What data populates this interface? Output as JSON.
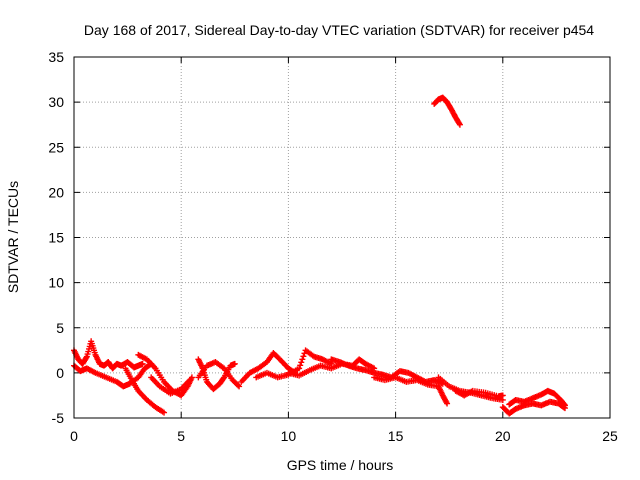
{
  "chart_data": {
    "type": "scatter",
    "title": "Day 168 of 2017, Sidereal Day-to-day VTEC variation (SDTVAR) for receiver p454",
    "xlabel": "GPS time / hours",
    "ylabel": "SDTVAR / TECUs",
    "xlim": [
      0,
      25
    ],
    "ylim": [
      -5,
      35
    ],
    "xticks": [
      "0",
      "5",
      "10",
      "15",
      "20",
      "25"
    ],
    "yticks": [
      "-5",
      "0",
      "5",
      "10",
      "15",
      "20",
      "25",
      "30",
      "35"
    ],
    "grid": true,
    "marker": "plus",
    "color": "#ff0000",
    "series": [
      {
        "name": "SDTVAR",
        "segments": [
          [
            [
              0.0,
              2.5
            ],
            [
              0.2,
              1.5
            ],
            [
              0.4,
              1.0
            ],
            [
              0.6,
              1.8
            ],
            [
              0.8,
              3.5
            ],
            [
              1.0,
              2.0
            ],
            [
              1.2,
              1.0
            ],
            [
              1.4,
              0.8
            ],
            [
              1.6,
              1.2
            ],
            [
              1.8,
              0.5
            ],
            [
              2.0,
              1.0
            ],
            [
              2.2,
              0.8
            ],
            [
              2.5,
              1.2
            ],
            [
              2.8,
              0.6
            ],
            [
              3.0,
              0.8
            ],
            [
              3.2,
              1.0
            ]
          ],
          [
            [
              0.0,
              0.8
            ],
            [
              0.3,
              0.2
            ],
            [
              0.6,
              0.5
            ],
            [
              1.0,
              0.0
            ],
            [
              1.5,
              -0.5
            ],
            [
              2.0,
              -1.0
            ],
            [
              2.3,
              -1.5
            ],
            [
              2.6,
              -1.2
            ],
            [
              3.0,
              -0.5
            ],
            [
              3.3,
              0.5
            ],
            [
              3.6,
              1.0
            ]
          ],
          [
            [
              2.4,
              0.5
            ],
            [
              2.7,
              -0.8
            ],
            [
              3.0,
              -2.0
            ],
            [
              3.4,
              -3.0
            ],
            [
              3.8,
              -3.8
            ],
            [
              4.2,
              -4.4
            ]
          ],
          [
            [
              3.0,
              2.0
            ],
            [
              3.4,
              1.5
            ],
            [
              3.8,
              0.5
            ],
            [
              4.2,
              -1.0
            ],
            [
              4.6,
              -2.0
            ],
            [
              5.0,
              -2.5
            ],
            [
              5.3,
              -1.5
            ],
            [
              5.5,
              -0.5
            ]
          ],
          [
            [
              3.6,
              -0.5
            ],
            [
              4.0,
              -1.5
            ],
            [
              4.5,
              -2.3
            ],
            [
              5.0,
              -1.8
            ],
            [
              5.4,
              -0.8
            ]
          ],
          [
            [
              5.8,
              1.5
            ],
            [
              6.0,
              0.5
            ],
            [
              6.2,
              -1.0
            ],
            [
              6.5,
              -1.8
            ],
            [
              6.8,
              -1.2
            ],
            [
              7.0,
              -0.5
            ],
            [
              7.3,
              0.8
            ],
            [
              7.5,
              1.0
            ]
          ],
          [
            [
              5.8,
              -0.5
            ],
            [
              6.2,
              0.8
            ],
            [
              6.6,
              1.2
            ],
            [
              7.0,
              0.5
            ],
            [
              7.4,
              -0.8
            ],
            [
              7.7,
              -1.5
            ]
          ],
          [
            [
              7.8,
              -1.0
            ],
            [
              8.2,
              0.0
            ],
            [
              8.6,
              0.5
            ],
            [
              9.0,
              1.2
            ],
            [
              9.3,
              2.2
            ],
            [
              9.6,
              1.5
            ],
            [
              10.0,
              0.5
            ],
            [
              10.3,
              0.0
            ]
          ],
          [
            [
              8.5,
              -0.5
            ],
            [
              9.0,
              0.0
            ],
            [
              9.5,
              -0.5
            ],
            [
              10.0,
              -0.2
            ],
            [
              10.5,
              0.5
            ],
            [
              10.8,
              2.5
            ],
            [
              11.2,
              1.8
            ],
            [
              11.6,
              1.5
            ],
            [
              12.0,
              1.0
            ]
          ],
          [
            [
              10.0,
              0.0
            ],
            [
              10.5,
              -0.3
            ],
            [
              11.0,
              0.3
            ],
            [
              11.5,
              0.8
            ],
            [
              12.0,
              0.5
            ],
            [
              12.5,
              1.0
            ],
            [
              13.0,
              0.8
            ],
            [
              13.3,
              1.5
            ],
            [
              13.6,
              1.0
            ],
            [
              14.0,
              0.5
            ]
          ],
          [
            [
              12.0,
              1.5
            ],
            [
              12.4,
              1.2
            ],
            [
              12.8,
              0.8
            ],
            [
              13.2,
              0.5
            ],
            [
              13.6,
              0.3
            ],
            [
              14.0,
              0.0
            ],
            [
              14.4,
              -0.2
            ],
            [
              14.8,
              -0.5
            ],
            [
              15.2,
              0.2
            ],
            [
              15.6,
              0.0
            ],
            [
              16.0,
              -0.5
            ],
            [
              16.4,
              -1.0
            ],
            [
              16.8,
              -0.8
            ],
            [
              17.2,
              -1.2
            ]
          ],
          [
            [
              14.0,
              -0.5
            ],
            [
              14.5,
              -0.8
            ],
            [
              15.0,
              -0.5
            ],
            [
              15.5,
              -1.0
            ],
            [
              16.0,
              -0.8
            ],
            [
              16.5,
              -1.3
            ],
            [
              17.0,
              -1.5
            ]
          ],
          [
            [
              17.0,
              -0.5
            ],
            [
              17.5,
              -1.5
            ],
            [
              18.0,
              -2.0
            ],
            [
              18.5,
              -2.2
            ],
            [
              19.0,
              -2.5
            ],
            [
              19.5,
              -2.8
            ],
            [
              20.0,
              -3.0
            ]
          ],
          [
            [
              17.0,
              -1.5
            ],
            [
              17.2,
              -2.5
            ],
            [
              17.4,
              -3.4
            ]
          ],
          [
            [
              17.8,
              -2.0
            ],
            [
              18.2,
              -2.5
            ],
            [
              18.6,
              -2.0
            ],
            [
              19.2,
              -2.2
            ],
            [
              19.8,
              -2.6
            ],
            [
              20.0,
              -2.5
            ]
          ],
          [
            [
              20.0,
              -3.8
            ],
            [
              20.3,
              -4.5
            ],
            [
              20.6,
              -4.0
            ],
            [
              21.0,
              -3.6
            ],
            [
              21.4,
              -3.4
            ],
            [
              21.8,
              -3.6
            ],
            [
              22.2,
              -3.2
            ],
            [
              22.6,
              -3.4
            ],
            [
              22.9,
              -3.9
            ]
          ],
          [
            [
              20.3,
              -3.5
            ],
            [
              20.6,
              -3.0
            ],
            [
              21.0,
              -3.2
            ],
            [
              21.4,
              -2.8
            ],
            [
              21.8,
              -2.4
            ],
            [
              22.1,
              -2.0
            ],
            [
              22.4,
              -2.3
            ],
            [
              22.7,
              -3.0
            ],
            [
              22.9,
              -3.6
            ]
          ],
          [
            [
              16.8,
              29.8
            ],
            [
              17.0,
              30.3
            ],
            [
              17.2,
              30.5
            ],
            [
              17.4,
              30.0
            ],
            [
              17.6,
              29.2
            ],
            [
              17.8,
              28.3
            ],
            [
              18.0,
              27.5
            ]
          ]
        ]
      }
    ]
  }
}
